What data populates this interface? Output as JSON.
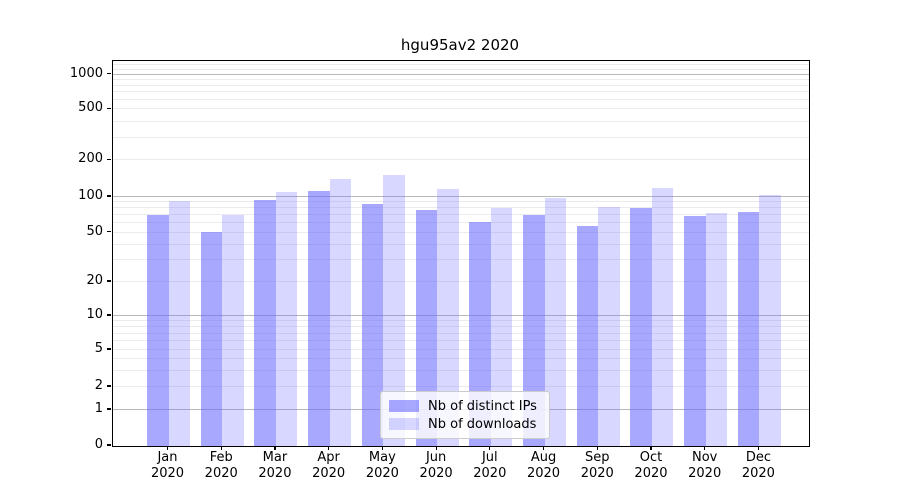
{
  "chart_data": {
    "type": "bar",
    "title": "hgu95av2 2020",
    "categories": [
      "Jan",
      "Feb",
      "Mar",
      "Apr",
      "May",
      "Jun",
      "Jul",
      "Aug",
      "Sep",
      "Oct",
      "Nov",
      "Dec"
    ],
    "year_label": "2020",
    "series": [
      {
        "name": "Nb of distinct IPs",
        "values": [
          70,
          51,
          94,
          112,
          87,
          77,
          61,
          71,
          57,
          80,
          69,
          74
        ]
      },
      {
        "name": "Nb of downloads",
        "values": [
          93,
          71,
          110,
          140,
          152,
          116,
          81,
          98,
          83,
          118,
          73,
          103
        ]
      }
    ],
    "yticks": [
      0,
      1,
      2,
      5,
      10,
      20,
      50,
      100,
      200,
      500,
      1000
    ],
    "ylim": [
      0,
      1300
    ],
    "yscale": "symlog",
    "grid": "both",
    "legend_position": "lower center",
    "colors": {
      "bar_base": "#6666ff",
      "ips_alpha": 0.57,
      "downloads_alpha": 0.26,
      "major_grid": "#b9b9b9",
      "minor_grid": "#ebebeb",
      "axis": "#000000"
    }
  }
}
